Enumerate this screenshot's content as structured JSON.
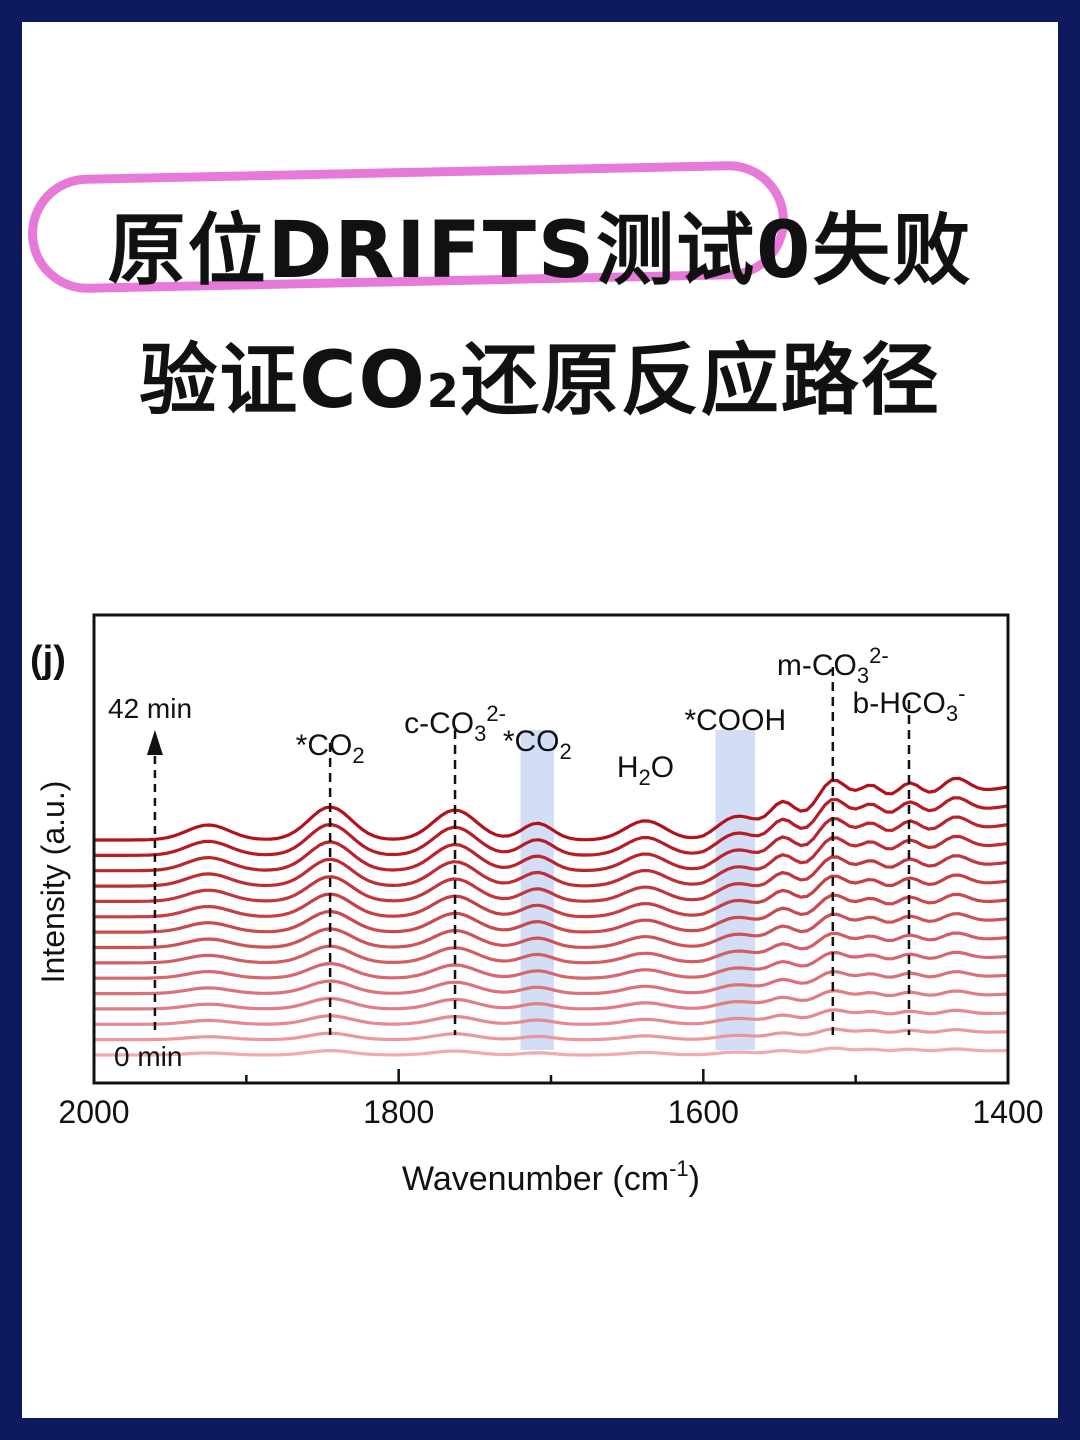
{
  "colors": {
    "frame": "#0f1a5c",
    "ring": "#e77ad9",
    "line_dark": "#b3121b",
    "line_light": "#f0a6a8",
    "band": "#c9d8f5"
  },
  "headline": {
    "line1_before": "原位DRIFTS测试0失败",
    "line2_a": "验证CO",
    "line2_sub": "2",
    "line2_b": "还原反应路径"
  },
  "chart_data": {
    "type": "line",
    "panel_label": "(j)",
    "xlabel": "Wavenumber (cm",
    "xlabel_sup": "-1",
    "xlabel_end": ")",
    "ylabel": "Intensity (a.u.)",
    "xlim": [
      2000,
      1400
    ],
    "x_ticks": [
      2000,
      1800,
      1600,
      1400
    ],
    "time_labels": {
      "end": "42 min",
      "start": "0 min"
    },
    "series_count": 15,
    "peaks_x": [
      1845,
      1763,
      1638,
      1515,
      1465
    ],
    "bands": [
      [
        1720,
        1698
      ],
      [
        1592,
        1566
      ]
    ],
    "annotations": [
      {
        "base": "*CO",
        "sub": "2",
        "sup": "",
        "x": 1845
      },
      {
        "base": "c-CO",
        "sub": "3",
        "sup": "2-",
        "x": 1763
      },
      {
        "base": "*CO",
        "sub": "2",
        "sup": "",
        "x": 1709
      },
      {
        "base": "H",
        "sub": "2",
        "sup": "",
        "x": 1638,
        "tail": "O"
      },
      {
        "base": "*COOH",
        "sub": "",
        "sup": "",
        "x": 1579
      },
      {
        "base": "m-CO",
        "sub": "3",
        "sup": "2-",
        "x": 1515
      },
      {
        "base": "b-HCO",
        "sub": "3",
        "sup": "-",
        "x": 1465
      }
    ]
  }
}
